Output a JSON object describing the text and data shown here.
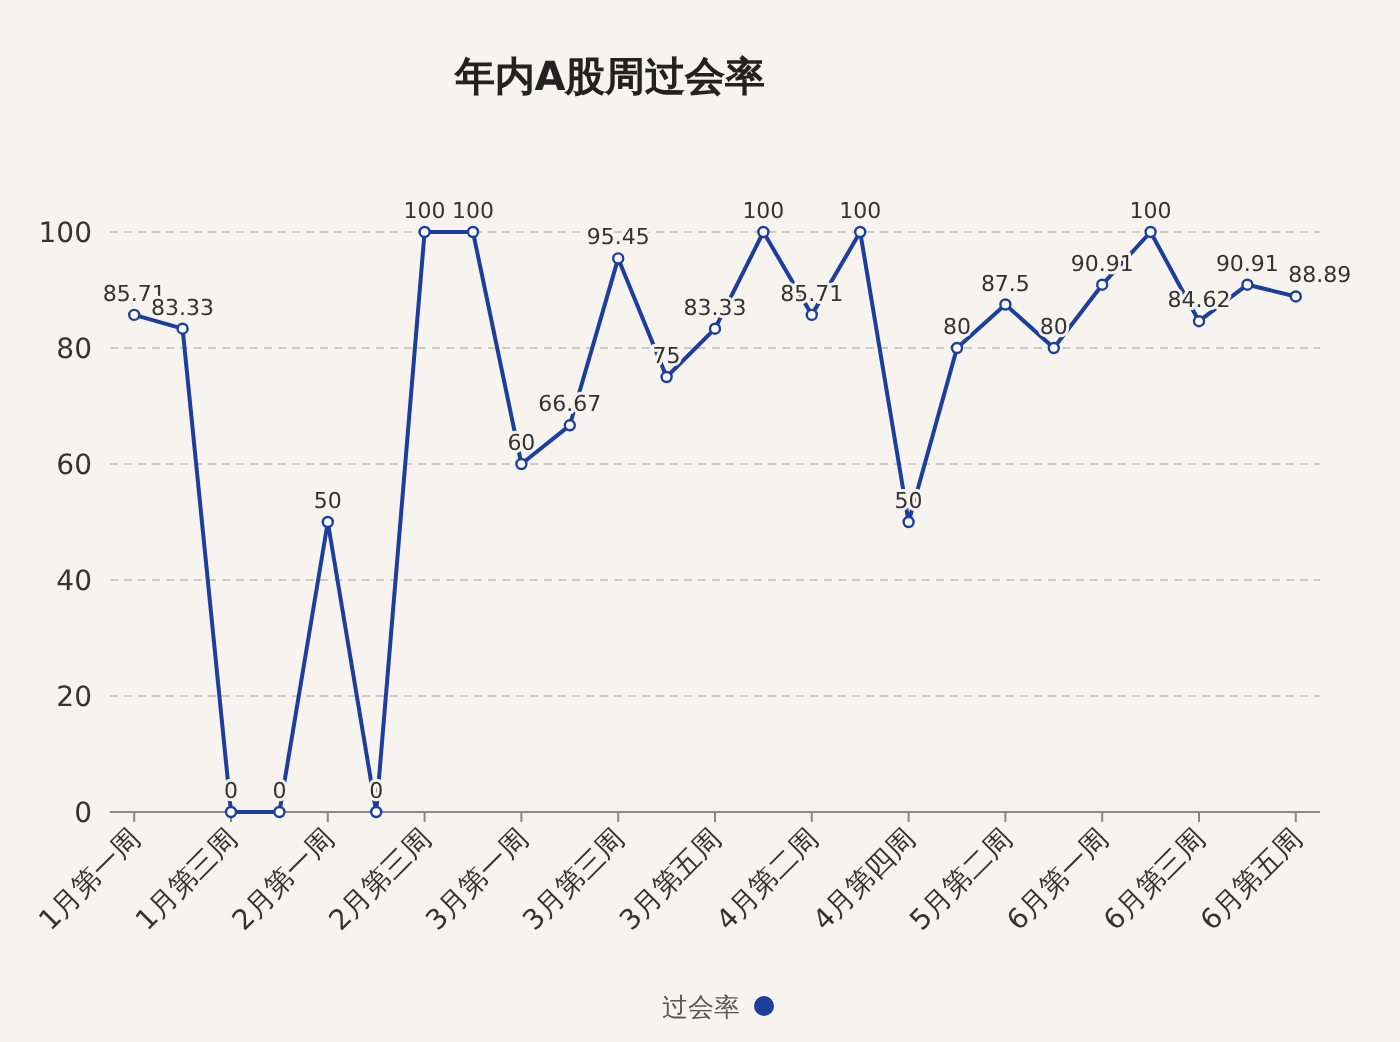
{
  "chart_data": {
    "type": "line",
    "title": "年内A股周过会率",
    "categories": [
      "1月第一周",
      null,
      "1月第三周",
      null,
      "2月第一周",
      null,
      "2月第三周",
      null,
      "3月第一周",
      null,
      "3月第三周",
      null,
      "3月第五周",
      null,
      "4月第二周",
      null,
      "4月第四周",
      null,
      "5月第二周",
      null,
      "6月第一周",
      null,
      "6月第三周",
      null,
      "6月第五周"
    ],
    "series": [
      {
        "name": "过会率",
        "color": "#1c3f9e",
        "values": [
          85.71,
          83.33,
          0,
          0,
          50,
          0,
          100,
          100,
          60,
          66.67,
          95.45,
          75,
          83.33,
          100,
          85.71,
          100,
          50,
          80,
          87.5,
          80,
          90.91,
          100,
          84.62,
          90.91,
          88.89
        ]
      }
    ],
    "ylim": [
      0,
      100
    ],
    "yticks": [
      0,
      20,
      40,
      60,
      80,
      100
    ],
    "grid": "y",
    "legend": "bottom",
    "marker": "circle",
    "line_style": "solid",
    "data_labels": true
  }
}
